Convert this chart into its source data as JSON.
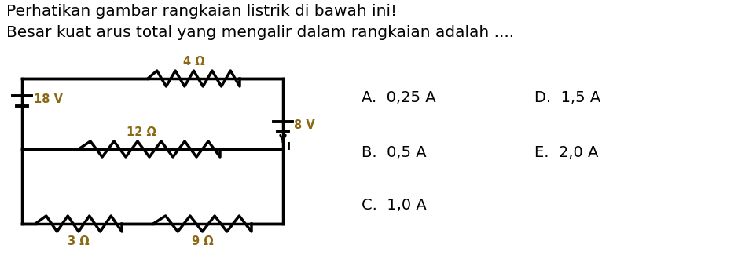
{
  "title1": "Perhatikan gambar rangkaian listrik di bawah ini!",
  "title2": "Besar kuat arus total yang mengalir dalam rangkaian adalah ....",
  "bg_color": "#ffffff",
  "text_color": "#000000",
  "label_color": "#8B6914",
  "circuit": {
    "battery1_label": "18 V",
    "battery2_label": "8 V",
    "r1_label": "4 Ω",
    "r2_label": "12 Ω",
    "r3_label": "3 Ω",
    "r4_label": "9 Ω",
    "current_label": "I"
  },
  "options": {
    "A": "A.  0,25 A",
    "B": "B.  0,5 A",
    "C": "C.  1,0 A",
    "D": "D.  1,5 A",
    "E": "E.  2,0 A"
  },
  "title_fontsize": 14.5,
  "option_fontsize": 14
}
